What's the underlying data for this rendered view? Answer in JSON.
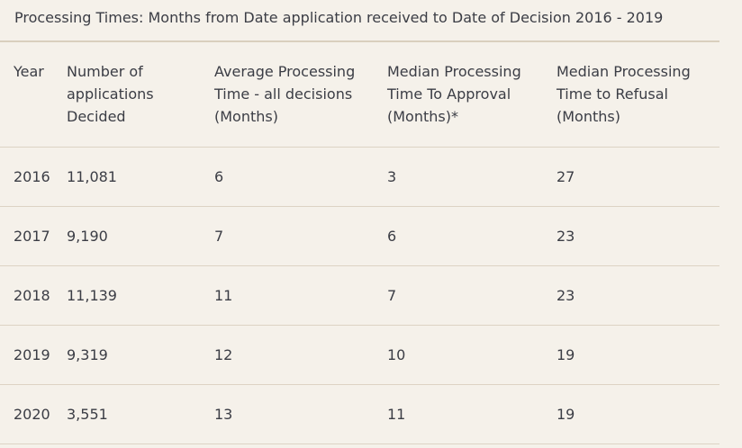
{
  "caption": "Processing Times: Months from Date application received to Date of Decision 2016 - 2019",
  "table": {
    "headers": [
      "Year",
      "Number of applications Decided",
      "Average Processing Time - all decisions (Months)",
      "Median Processing Time To Approval (Months)*",
      "Median Processing Time to Refusal (Months)"
    ],
    "rows": [
      [
        "2016",
        "11,081",
        "6",
        "3",
        "27"
      ],
      [
        "2017",
        "9,190",
        "7",
        "6",
        "23"
      ],
      [
        "2018",
        "11,139",
        "11",
        "7",
        "23"
      ],
      [
        "2019",
        "9,319",
        "12",
        "10",
        "19"
      ],
      [
        "2020",
        "3,551",
        "13",
        "11",
        "19"
      ]
    ]
  }
}
